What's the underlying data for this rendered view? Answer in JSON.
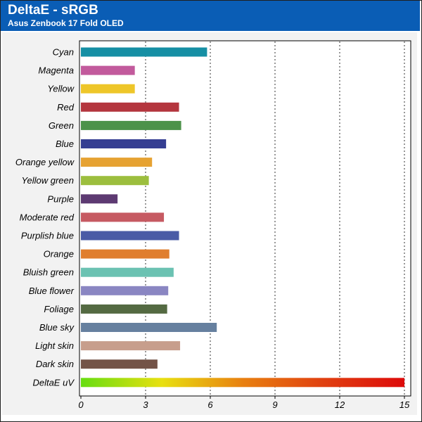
{
  "header": {
    "title": "DeltaE - sRGB",
    "subtitle": "Asus Zenbook 17 Fold OLED"
  },
  "colors": {
    "header_bg": "#0a5db5",
    "panel_bg": "#f2f2f2"
  },
  "chart_data": {
    "type": "bar",
    "orientation": "horizontal",
    "title": "DeltaE - sRGB",
    "subtitle": "Asus Zenbook 17 Fold OLED",
    "xlabel": "",
    "ylabel": "",
    "xlim": [
      0,
      15
    ],
    "xticks": [
      0,
      3,
      6,
      9,
      12,
      15
    ],
    "grid": "vertical dotted",
    "legend": "none",
    "categories": [
      "Cyan",
      "Magenta",
      "Yellow",
      "Red",
      "Green",
      "Blue",
      "Orange yellow",
      "Yellow green",
      "Purple",
      "Moderate red",
      "Purplish blue",
      "Orange",
      "Bluish green",
      "Blue flower",
      "Foliage",
      "Blue sky",
      "Light skin",
      "Dark skin",
      "DeltaE uV"
    ],
    "values": [
      5.85,
      2.5,
      2.5,
      4.55,
      4.65,
      3.95,
      3.3,
      3.15,
      1.7,
      3.85,
      4.55,
      4.1,
      4.3,
      4.05,
      4.0,
      6.3,
      4.6,
      3.55,
      15
    ],
    "bar_colors": [
      "#168fa4",
      "#c25a9c",
      "#eec629",
      "#b4363e",
      "#4c924a",
      "#353e92",
      "#e6a232",
      "#9cbe3e",
      "#5d3a72",
      "#c65a62",
      "#4a5ba6",
      "#e07e2e",
      "#6bc2b2",
      "#8a86c2",
      "#546a42",
      "#66809f",
      "#c79e8c",
      "#735347",
      "gradient"
    ],
    "gradient_stops": [
      "#66dd11",
      "#e8e010",
      "#e88010",
      "#e04010",
      "#dd0a0a"
    ]
  }
}
